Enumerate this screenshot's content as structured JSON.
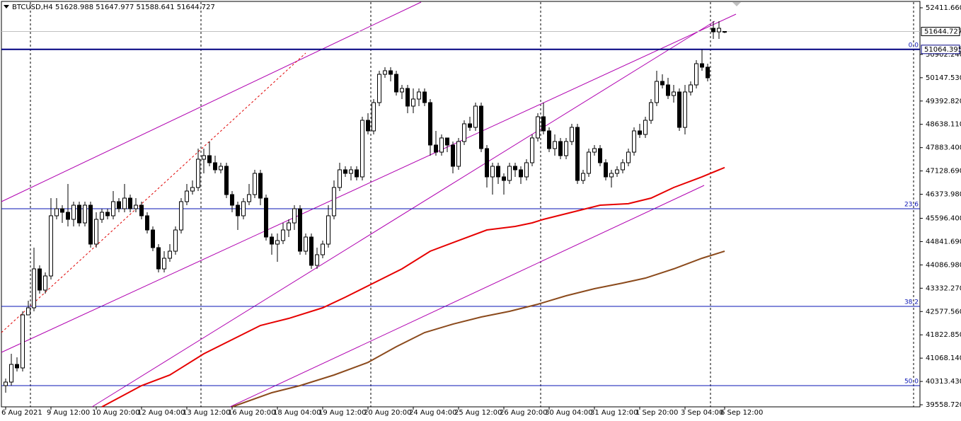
{
  "chart_data": {
    "type": "candlestick",
    "title": "BTCUSD,H4",
    "categories": [
      "6 Aug 2021",
      null,
      null,
      null,
      null,
      null,
      null,
      null,
      "9 Aug 12:00",
      null,
      null,
      null,
      null,
      null,
      null,
      null,
      "10 Aug 20:00",
      null,
      null,
      null,
      null,
      null,
      null,
      null,
      "12 Aug 04:00",
      null,
      null,
      null,
      null,
      null,
      null,
      null,
      "13 Aug 12:00",
      null,
      null,
      null,
      null,
      null,
      null,
      null,
      "16 Aug 20:00",
      null,
      null,
      null,
      null,
      null,
      null,
      null,
      "18 Aug 04:00",
      null,
      null,
      null,
      null,
      null,
      null,
      null,
      "19 Aug 12:00",
      null,
      null,
      null,
      null,
      null,
      null,
      null,
      "20 Aug 20:00",
      null,
      null,
      null,
      null,
      null,
      null,
      null,
      "24 Aug 04:00",
      null,
      null,
      null,
      null,
      null,
      null,
      null,
      "25 Aug 12:00",
      null,
      null,
      null,
      null,
      null,
      null,
      null,
      "26 Aug 20:00",
      null,
      null,
      null,
      null,
      null,
      null,
      null,
      "30 Aug 04:00",
      null,
      null,
      null,
      null,
      null,
      null,
      null,
      "31 Aug 12:00",
      null,
      null,
      null,
      null,
      null,
      null,
      null,
      "1 Sep 20:00",
      null,
      null,
      null,
      null,
      null,
      null,
      null,
      "3 Sep 04:00",
      null,
      null,
      null,
      null,
      null,
      null,
      "6 Sep 12:00"
    ],
    "open": [
      40178,
      40293,
      40865,
      40751,
      42469,
      42698,
      43958,
      43271,
      43729,
      45677,
      45906,
      45791,
      45562,
      46020,
      45447,
      46020,
      44760,
      45562,
      45791,
      45677,
      46135,
      45906,
      46249,
      45906,
      46020,
      45677,
      45218,
      44646,
      43958,
      44302,
      44531,
      45218,
      46135,
      46478,
      46593,
      47509,
      47624,
      47395,
      47166,
      47280,
      46364,
      46020,
      45677,
      46135,
      46364,
      47051,
      46249,
      44989,
      44760,
      44875,
      45218,
      45447,
      45906,
      44531,
      44989,
      44073,
      44416,
      44760,
      45677,
      46593,
      47166,
      47051,
      47166,
      46937,
      48769,
      48426,
      49342,
      50258,
      50373,
      50258,
      49686,
      49800,
      49228,
      49457,
      49686,
      49342,
      47968,
      47738,
      48197,
      47968,
      47280,
      48082,
      48655,
      48540,
      49228,
      47853,
      46937,
      47280,
      46937,
      46822,
      47280,
      47166,
      46937,
      47395,
      48197,
      48884,
      48426,
      47853,
      48082,
      47624,
      48082,
      48540,
      46822,
      47051,
      47738,
      47853,
      47395,
      46937,
      47051,
      47166,
      47395,
      47738,
      48426,
      48311,
      48769,
      49342,
      50029,
      49915,
      49571,
      49686,
      48540,
      49686,
      49915,
      50602,
      50488,
      51748,
      51633,
      51628.988
    ],
    "high": [
      40407,
      41209,
      41094,
      42584,
      42927,
      44646,
      44073,
      43844,
      46249,
      46249,
      46020,
      46708,
      46135,
      46135,
      46135,
      46135,
      45791,
      45906,
      45906,
      46478,
      46249,
      46708,
      46364,
      46249,
      46135,
      45791,
      45333,
      44760,
      44531,
      44760,
      45333,
      46249,
      46708,
      46822,
      47853,
      47853,
      48082,
      47624,
      47395,
      47395,
      46478,
      46135,
      46249,
      46708,
      47166,
      47166,
      46364,
      45104,
      45104,
      45447,
      45562,
      46020,
      46020,
      45104,
      45104,
      44646,
      44875,
      46020,
      46822,
      47395,
      47280,
      47280,
      47280,
      48884,
      48998,
      49457,
      50373,
      50488,
      50488,
      50373,
      49915,
      49915,
      49800,
      49800,
      49800,
      49457,
      48426,
      48311,
      48197,
      48082,
      48197,
      48769,
      48884,
      49342,
      49342,
      47968,
      47395,
      47395,
      47051,
      47395,
      47395,
      47280,
      47509,
      48311,
      48998,
      49342,
      48540,
      48311,
      48197,
      48197,
      48655,
      48655,
      47166,
      47853,
      47968,
      47968,
      47509,
      47166,
      47280,
      47509,
      47853,
      48540,
      48655,
      48884,
      49457,
      50373,
      50258,
      50144,
      49915,
      49800,
      49915,
      50029,
      50717,
      51060,
      50602,
      51977,
      51977,
      51647.977
    ],
    "low": [
      39949,
      40178,
      40636,
      40636,
      42469,
      42584,
      43156,
      43156,
      43615,
      45562,
      45447,
      45333,
      45333,
      45333,
      45333,
      44646,
      44646,
      45447,
      45562,
      45562,
      45791,
      45791,
      45791,
      45791,
      45562,
      45104,
      44531,
      43844,
      43844,
      44187,
      44416,
      45104,
      46020,
      46364,
      46478,
      47051,
      47280,
      47051,
      47051,
      46249,
      45791,
      45218,
      45562,
      46020,
      46249,
      46020,
      44875,
      44416,
      44187,
      44760,
      44989,
      45218,
      44416,
      44416,
      43958,
      43958,
      44302,
      44646,
      45562,
      46478,
      46937,
      46822,
      46822,
      46822,
      48311,
      48311,
      49228,
      50144,
      50029,
      49571,
      49457,
      48998,
      48998,
      49228,
      49228,
      47624,
      47624,
      47624,
      47738,
      47051,
      47166,
      47968,
      48426,
      48426,
      47738,
      46593,
      46364,
      46708,
      46364,
      46708,
      46937,
      46708,
      46822,
      47280,
      48082,
      48311,
      47738,
      47624,
      47509,
      47509,
      47968,
      46708,
      46708,
      46937,
      47624,
      47280,
      46822,
      46593,
      46937,
      47051,
      47280,
      47624,
      48197,
      48197,
      48655,
      49228,
      49800,
      49457,
      49342,
      48426,
      48311,
      49571,
      49800,
      50373,
      50029,
      51404,
      51404,
      51588.641
    ],
    "close": [
      40293,
      40865,
      40751,
      42469,
      42698,
      43958,
      43271,
      43729,
      45677,
      45906,
      45791,
      45562,
      46020,
      45447,
      46020,
      44760,
      45562,
      45791,
      45677,
      46135,
      45906,
      46249,
      45906,
      46020,
      45677,
      45218,
      44646,
      43958,
      44302,
      44531,
      45218,
      46135,
      46478,
      46593,
      47509,
      47624,
      47395,
      47166,
      47280,
      46364,
      46020,
      45677,
      46135,
      46364,
      47051,
      46249,
      44989,
      44760,
      44875,
      45218,
      45447,
      45906,
      44531,
      44989,
      44073,
      44416,
      44760,
      45677,
      46593,
      47166,
      47051,
      47166,
      46937,
      48769,
      48426,
      49342,
      50258,
      50373,
      50258,
      49686,
      49800,
      49228,
      49457,
      49686,
      49342,
      47968,
      47738,
      48197,
      47968,
      47280,
      48082,
      48655,
      48540,
      49228,
      47853,
      46937,
      47280,
      46937,
      46822,
      47280,
      47166,
      46937,
      47395,
      48197,
      48884,
      48426,
      47853,
      48082,
      47624,
      48082,
      48540,
      46822,
      47051,
      47738,
      47853,
      47395,
      46937,
      47051,
      47166,
      47395,
      47738,
      48426,
      48311,
      48769,
      49342,
      50029,
      49915,
      49571,
      49686,
      48540,
      49686,
      49915,
      50602,
      50488,
      50144,
      51633,
      51748,
      51644.727
    ],
    "overlays": [
      {
        "color": "#e60000",
        "x": [
          17,
          24,
          29,
          35,
          40,
          45,
          50,
          56,
          60,
          65,
          70,
          75,
          80,
          85,
          90,
          93,
          95,
          100,
          105,
          110,
          114,
          118,
          123,
          127
        ],
        "values": [
          39491,
          40178,
          40522,
          41209,
          41667,
          42125,
          42354,
          42698,
          43042,
          43500,
          43958,
          44531,
          44875,
          45218,
          45333,
          45447,
          45562,
          45791,
          46020,
          46070,
          46249,
          46593,
          46937,
          47240
        ]
      },
      {
        "color": "#8b4a1c",
        "x": [
          40,
          47,
          52,
          58,
          64,
          69,
          74,
          79,
          84,
          89,
          94,
          99,
          104,
          109,
          113,
          118,
          123,
          127
        ],
        "values": [
          39491,
          39949,
          40178,
          40522,
          40930,
          41438,
          41896,
          42170,
          42400,
          42584,
          42813,
          43088,
          43317,
          43500,
          43660,
          43958,
          44302,
          44531
        ]
      }
    ],
    "fib_levels": [
      {
        "level": "0.0",
        "price": 51064.395
      },
      {
        "level": "23.6",
        "price": 45906
      },
      {
        "level": "38.2",
        "price": 42744
      },
      {
        "level": "50.0",
        "price": 40178
      }
    ],
    "fib_color": "#0a14b4",
    "bull_color": "#ffffff",
    "bear_color": "#000000",
    "ylim": [
      39491,
      52595
    ],
    "yticks": [
      {
        "value": 52411.66,
        "label": "52411.660"
      },
      {
        "value": 50902.24,
        "label": "50902.240"
      },
      {
        "value": 50147.53,
        "label": "50147.530"
      },
      {
        "value": 49392.82,
        "label": "49392.820"
      },
      {
        "value": 48638.11,
        "label": "48638.110"
      },
      {
        "value": 47883.4,
        "label": "47883.400"
      },
      {
        "value": 47128.69,
        "label": "47128.690"
      },
      {
        "value": 46373.98,
        "label": "46373.980"
      },
      {
        "value": 45596.4,
        "label": "45596.400"
      },
      {
        "value": 44841.69,
        "label": "44841.690"
      },
      {
        "value": 44086.98,
        "label": "44086.980"
      },
      {
        "value": 43332.27,
        "label": "43332.270"
      },
      {
        "value": 42577.56,
        "label": "42577.560"
      },
      {
        "value": 41822.85,
        "label": "41822.850"
      },
      {
        "value": 41068.14,
        "label": "41068.140"
      },
      {
        "value": 40313.43,
        "label": "40313.430"
      },
      {
        "value": 39558.72,
        "label": "39558.720"
      }
    ],
    "grid": false
  }
}
